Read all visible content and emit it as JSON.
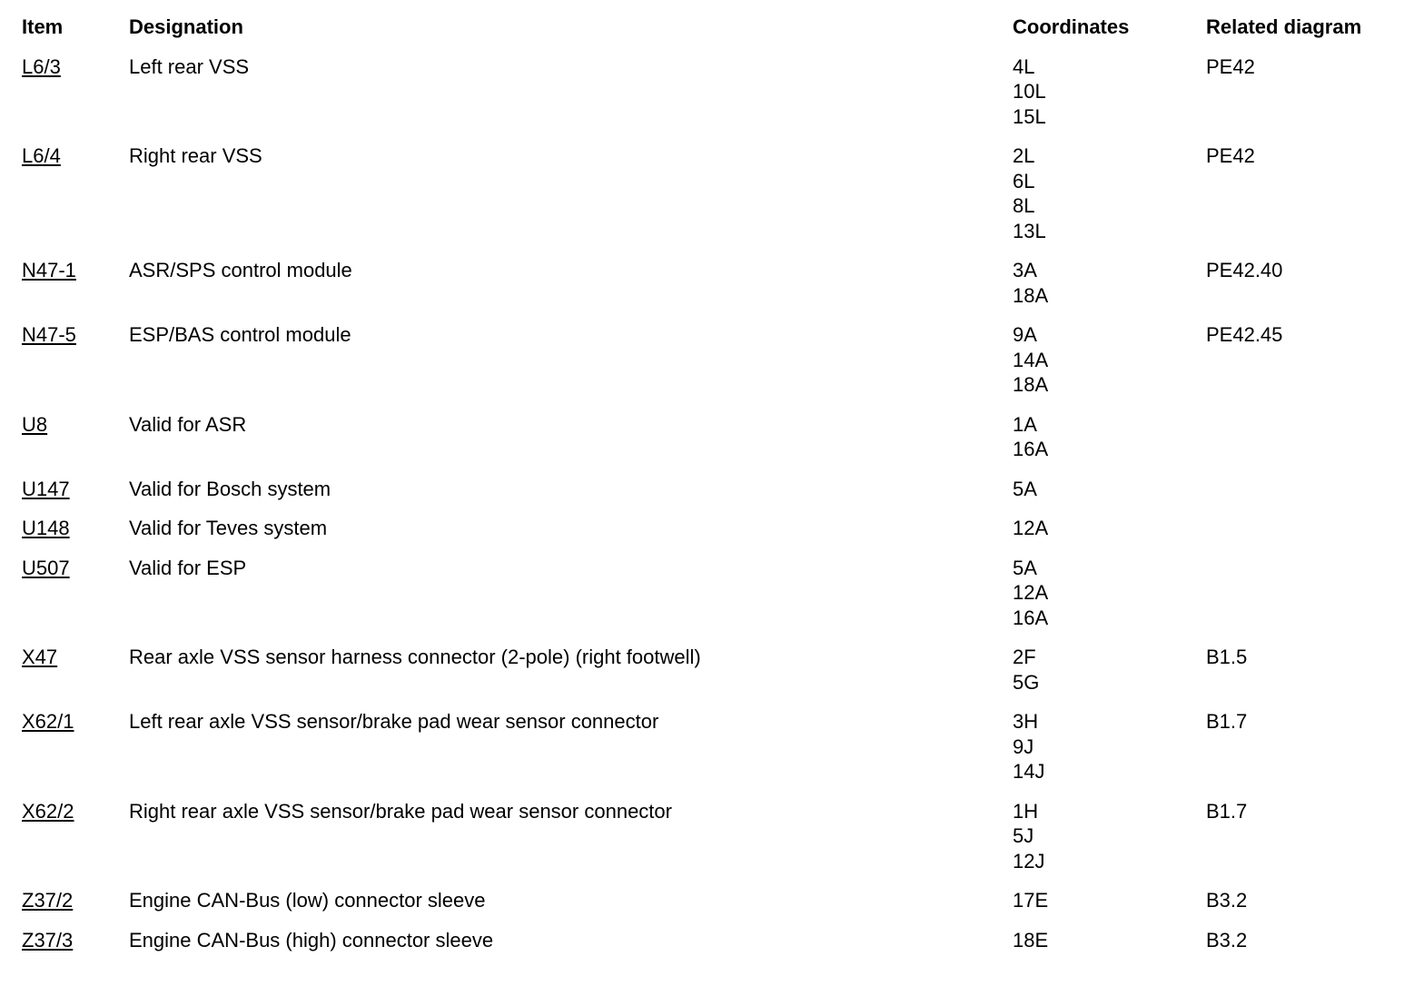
{
  "page": {
    "background_color": "#ffffff",
    "text_color": "#000000"
  },
  "table": {
    "headers": {
      "item": "Item",
      "designation": "Designation",
      "coordinates": "Coordinates",
      "related": "Related diagram"
    },
    "rows": [
      {
        "item": "L6/3",
        "designation": "Left rear VSS",
        "coordinates": [
          "4L",
          "10L",
          "15L"
        ],
        "related": "PE42"
      },
      {
        "item": "L6/4",
        "designation": "Right rear VSS",
        "coordinates": [
          "2L",
          "6L",
          "8L",
          "13L"
        ],
        "related": "PE42"
      },
      {
        "item": "N47-1",
        "designation": "ASR/SPS control module",
        "coordinates": [
          "3A",
          "18A"
        ],
        "related": "PE42.40"
      },
      {
        "item": "N47-5",
        "designation": "ESP/BAS control module",
        "coordinates": [
          "9A",
          "14A",
          "18A"
        ],
        "related": "PE42.45"
      },
      {
        "item": "U8",
        "designation": "Valid for ASR",
        "coordinates": [
          "1A",
          "16A"
        ],
        "related": ""
      },
      {
        "item": "U147",
        "designation": "Valid for Bosch system",
        "coordinates": [
          "5A"
        ],
        "related": ""
      },
      {
        "item": "U148",
        "designation": "Valid for Teves system",
        "coordinates": [
          "12A"
        ],
        "related": ""
      },
      {
        "item": "U507",
        "designation": "Valid for ESP",
        "coordinates": [
          "5A",
          "12A",
          "16A"
        ],
        "related": ""
      },
      {
        "item": "X47",
        "designation": "Rear axle VSS sensor harness connector (2-pole) (right footwell)",
        "coordinates": [
          "2F",
          "5G"
        ],
        "related": "B1.5"
      },
      {
        "item": "X62/1",
        "designation": "Left rear axle VSS sensor/brake pad wear sensor connector",
        "coordinates": [
          "3H",
          "9J",
          "14J"
        ],
        "related": "B1.7"
      },
      {
        "item": "X62/2",
        "designation": "Right rear axle VSS sensor/brake pad wear sensor connector",
        "coordinates": [
          "1H",
          "5J",
          "12J"
        ],
        "related": "B1.7"
      },
      {
        "item": "Z37/2",
        "designation": "Engine CAN-Bus (low) connector sleeve",
        "coordinates": [
          "17E"
        ],
        "related": "B3.2"
      },
      {
        "item": "Z37/3",
        "designation": "Engine CAN-Bus (high) connector sleeve",
        "coordinates": [
          "18E"
        ],
        "related": "B3.2"
      }
    ]
  }
}
